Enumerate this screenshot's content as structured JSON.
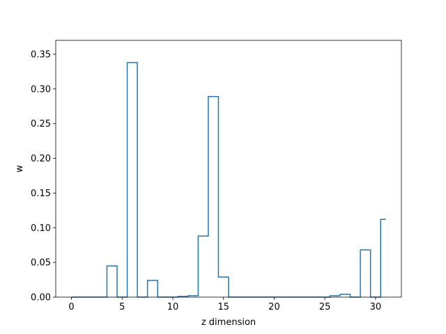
{
  "chart_data": {
    "type": "line",
    "drawstyle": "steps-mid",
    "xlabel": "z dimension",
    "ylabel": "w",
    "xlim": [
      -1.55,
      32.55
    ],
    "ylim": [
      0,
      0.37
    ],
    "xticks": [
      0,
      5,
      10,
      15,
      20,
      25,
      30
    ],
    "yticks": [
      0.0,
      0.05,
      0.1,
      0.15,
      0.2,
      0.25,
      0.3,
      0.35
    ],
    "xtick_labels": [
      "0",
      "5",
      "10",
      "15",
      "20",
      "25",
      "30"
    ],
    "ytick_labels": [
      "0.00",
      "0.05",
      "0.10",
      "0.15",
      "0.20",
      "0.25",
      "0.30",
      "0.35"
    ],
    "grid": false,
    "line_color": "#1f77b4",
    "x": [
      0,
      1,
      2,
      3,
      4,
      5,
      6,
      7,
      8,
      9,
      10,
      11,
      12,
      13,
      14,
      15,
      16,
      17,
      18,
      19,
      20,
      21,
      22,
      23,
      24,
      25,
      26,
      27,
      28,
      29,
      30,
      31
    ],
    "y": [
      0.0,
      0.0,
      0.0,
      0.0,
      0.045,
      0.0,
      0.338,
      0.0,
      0.024,
      0.0,
      0.0,
      0.001,
      0.002,
      0.088,
      0.289,
      0.029,
      0.0,
      0.0,
      0.0,
      0.0,
      0.0,
      0.0,
      0.0,
      0.0,
      0.0,
      0.0,
      0.002,
      0.004,
      0.0,
      0.068,
      0.0,
      0.112
    ]
  }
}
